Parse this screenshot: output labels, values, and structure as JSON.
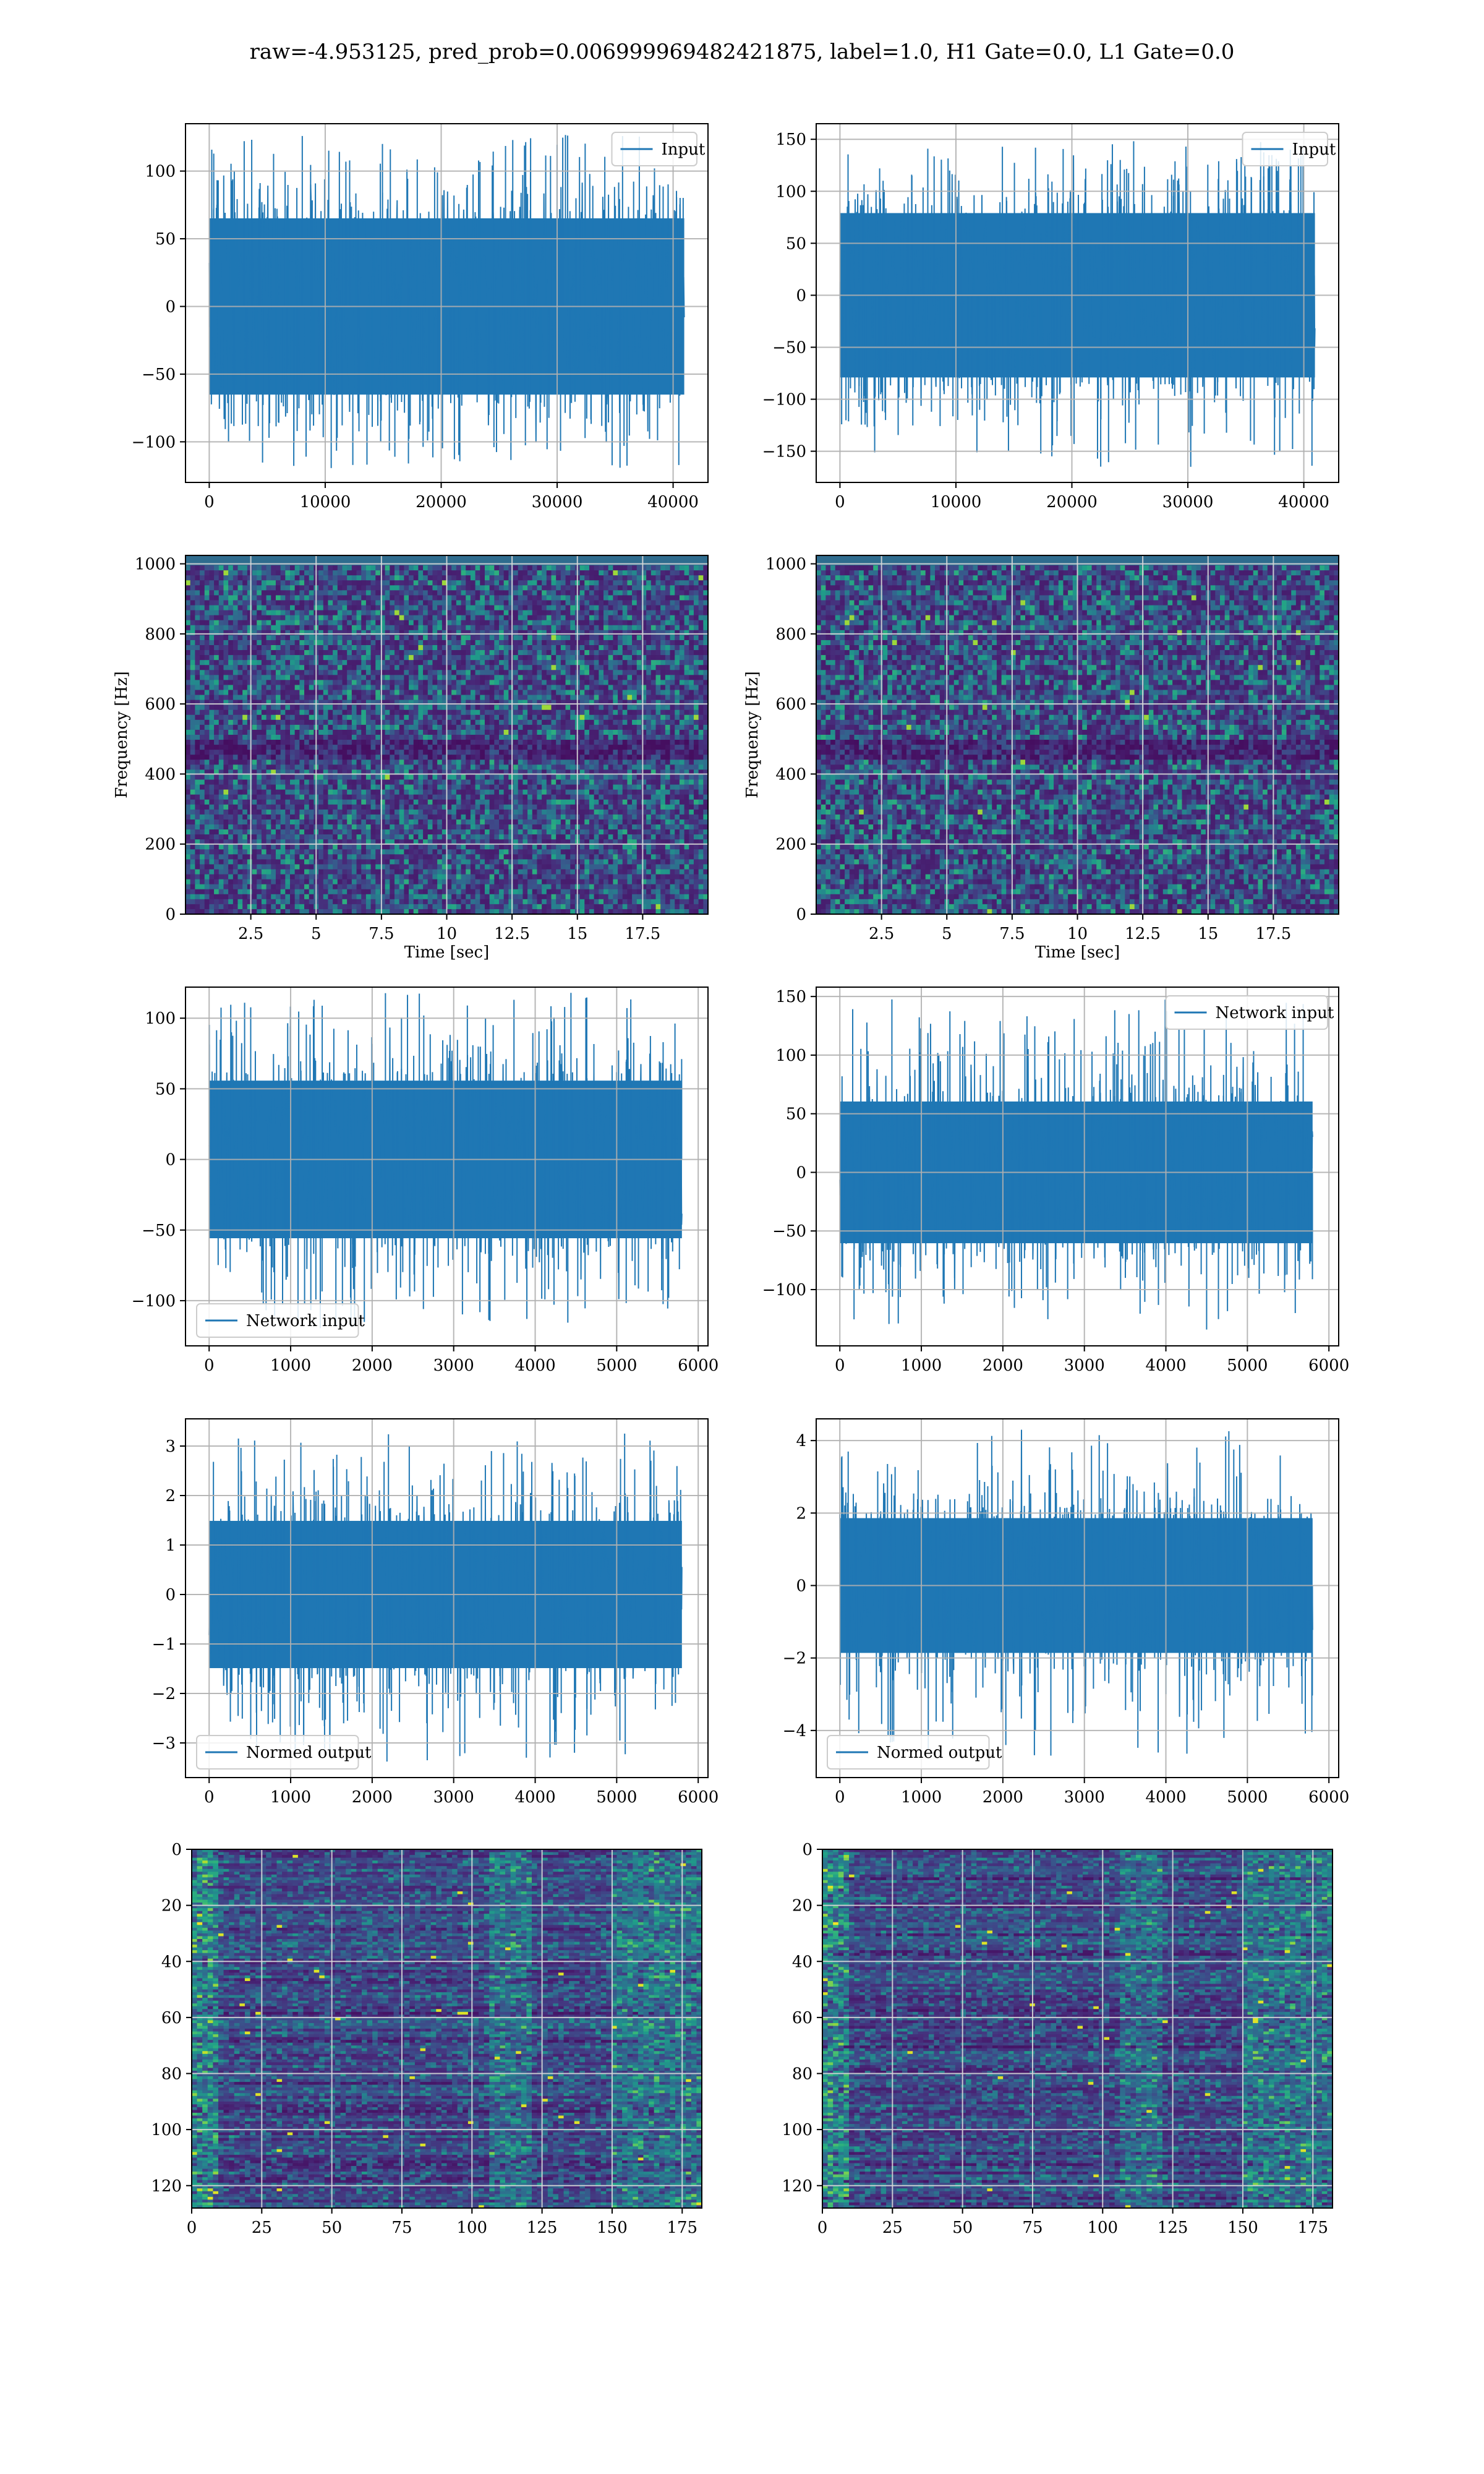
{
  "suptitle": "raw=-4.953125, pred_prob=0.006999969482421875, label=1.0, H1 Gate=0.0, L1 Gate=0.0",
  "colors": {
    "line": "#1f77b4",
    "grid": "#b0b0b0"
  },
  "chart_data": [
    {
      "id": "input_h1",
      "type": "line",
      "legend_label": "Input",
      "legend_position": "upper right",
      "xlim": [
        -2048,
        43008
      ],
      "ylim": [
        -130,
        135
      ],
      "xticks": [
        0,
        10000,
        20000,
        30000,
        40000
      ],
      "yticks": [
        -100,
        -50,
        0,
        50,
        100
      ],
      "series": [
        {
          "name": "Input",
          "n_samples": 40960,
          "envelope": {
            "typical_min": -70,
            "typical_max": 70,
            "peak_min": -120,
            "peak_max": 128
          }
        }
      ],
      "grid": true
    },
    {
      "id": "input_l1",
      "type": "line",
      "legend_label": "Input",
      "legend_position": "upper right",
      "xlim": [
        -2048,
        43008
      ],
      "ylim": [
        -180,
        165
      ],
      "xticks": [
        0,
        10000,
        20000,
        30000,
        40000
      ],
      "yticks": [
        -150,
        -100,
        -50,
        0,
        50,
        100,
        150
      ],
      "series": [
        {
          "name": "Input",
          "n_samples": 40960,
          "envelope": {
            "typical_min": -85,
            "typical_max": 85,
            "peak_min": -165,
            "peak_max": 150
          }
        }
      ],
      "grid": true
    },
    {
      "id": "spec_h1",
      "type": "heatmap",
      "colormap": "viridis",
      "xlabel": "Time [sec]",
      "ylabel": "Frequency [Hz]",
      "xlim": [
        0,
        20
      ],
      "ylim": [
        0,
        1024
      ],
      "xticks": [
        2.5,
        5.0,
        7.5,
        10.0,
        12.5,
        15.0,
        17.5
      ],
      "yticks": [
        0,
        200,
        400,
        600,
        800,
        1000
      ],
      "grid": true
    },
    {
      "id": "spec_l1",
      "type": "heatmap",
      "colormap": "viridis",
      "xlabel": "Time [sec]",
      "ylabel": "Frequency [Hz]",
      "xlim": [
        0,
        20
      ],
      "ylim": [
        0,
        1024
      ],
      "xticks": [
        2.5,
        5.0,
        7.5,
        10.0,
        12.5,
        15.0,
        17.5
      ],
      "yticks": [
        0,
        200,
        400,
        600,
        800,
        1000
      ],
      "grid": true
    },
    {
      "id": "netin_h1",
      "type": "line",
      "legend_label": "Network input",
      "legend_position": "lower left",
      "xlim": [
        -290,
        6120
      ],
      "ylim": [
        -132,
        122
      ],
      "xticks": [
        0,
        1000,
        2000,
        3000,
        4000,
        5000,
        6000
      ],
      "yticks": [
        -100,
        -50,
        0,
        50,
        100
      ],
      "series": [
        {
          "name": "Network input",
          "n_samples": 5800,
          "envelope": {
            "typical_min": -60,
            "typical_max": 60,
            "peak_min": -120,
            "peak_max": 118
          }
        }
      ],
      "grid": true
    },
    {
      "id": "netin_l1",
      "type": "line",
      "legend_label": "Network input",
      "legend_position": "upper right",
      "xlim": [
        -290,
        6120
      ],
      "ylim": [
        -148,
        158
      ],
      "xticks": [
        0,
        1000,
        2000,
        3000,
        4000,
        5000,
        6000
      ],
      "yticks": [
        -100,
        -50,
        0,
        50,
        100,
        150
      ],
      "series": [
        {
          "name": "Network input",
          "n_samples": 5800,
          "envelope": {
            "typical_min": -65,
            "typical_max": 65,
            "peak_min": -135,
            "peak_max": 148
          }
        }
      ],
      "grid": true
    },
    {
      "id": "norm_h1",
      "type": "line",
      "legend_label": "Normed output",
      "legend_position": "lower left",
      "xlim": [
        -290,
        6120
      ],
      "ylim": [
        -3.7,
        3.55
      ],
      "xticks": [
        0,
        1000,
        2000,
        3000,
        4000,
        5000,
        6000
      ],
      "yticks": [
        -3,
        -2,
        -1,
        0,
        1,
        2,
        3
      ],
      "series": [
        {
          "name": "Normed output",
          "n_samples": 5800,
          "envelope": {
            "typical_min": -1.6,
            "typical_max": 1.6,
            "peak_min": -3.4,
            "peak_max": 3.3
          }
        }
      ],
      "grid": true
    },
    {
      "id": "norm_l1",
      "type": "line",
      "legend_label": "Normed output",
      "legend_position": "lower left",
      "xlim": [
        -290,
        6120
      ],
      "ylim": [
        -5.3,
        4.6
      ],
      "xticks": [
        0,
        1000,
        2000,
        3000,
        4000,
        5000,
        6000
      ],
      "yticks": [
        -4,
        -2,
        0,
        2,
        4
      ],
      "series": [
        {
          "name": "Normed output",
          "n_samples": 5800,
          "envelope": {
            "typical_min": -2.0,
            "typical_max": 2.0,
            "peak_min": -4.7,
            "peak_max": 4.3
          }
        }
      ],
      "grid": true
    },
    {
      "id": "feat_h1",
      "type": "heatmap",
      "colormap": "viridis",
      "xlim": [
        0,
        182
      ],
      "ylim": [
        128,
        0
      ],
      "xticks": [
        0,
        25,
        50,
        75,
        100,
        125,
        150,
        175
      ],
      "yticks": [
        0,
        20,
        40,
        60,
        80,
        100,
        120
      ],
      "rows": 128,
      "cols": 182,
      "grid": true
    },
    {
      "id": "feat_l1",
      "type": "heatmap",
      "colormap": "viridis",
      "xlim": [
        0,
        182
      ],
      "ylim": [
        128,
        0
      ],
      "xticks": [
        0,
        25,
        50,
        75,
        100,
        125,
        150,
        175
      ],
      "yticks": [
        0,
        20,
        40,
        60,
        80,
        100,
        120
      ],
      "rows": 128,
      "cols": 182,
      "grid": true
    }
  ]
}
